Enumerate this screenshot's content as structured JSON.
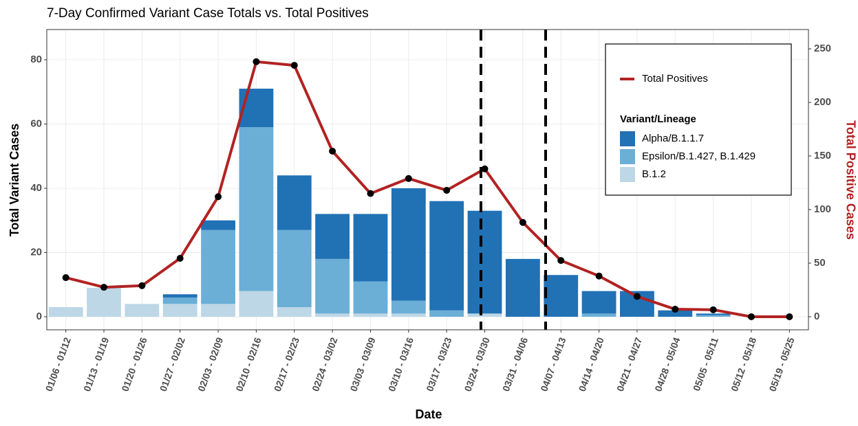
{
  "chart_data": {
    "type": "bar",
    "title": "7-Day Confirmed Variant Case Totals vs. Total Positives",
    "x_label": "Date",
    "y_label": "Total Variant Cases",
    "y2_label": "Total Positive Cases",
    "legend_title": "Variant/Lineage",
    "categories": [
      "01/06 - 01/12",
      "01/13 - 01/19",
      "01/20 - 01/26",
      "01/27 - 02/02",
      "02/03 - 02/09",
      "02/10 - 02/16",
      "02/17 - 02/23",
      "02/24 - 03/02",
      "03/03 - 03/09",
      "03/10 - 03/16",
      "03/17 - 03/23",
      "03/24 - 03/30",
      "03/31 - 04/06",
      "04/07 - 04/13",
      "04/14 - 04/20",
      "04/21 - 04/27",
      "04/28 - 05/04",
      "05/05 - 05/11",
      "05/12 - 05/18",
      "05/19 - 05/25"
    ],
    "series": [
      {
        "name": "Alpha/B.1.1.7",
        "color": "#2171b5",
        "values": [
          0,
          0,
          0,
          1,
          3,
          12,
          17,
          14,
          21,
          35,
          34,
          32,
          18,
          13,
          7,
          8,
          2,
          0.5,
          0,
          0
        ]
      },
      {
        "name": "Epsilon/B.1.427, B.1.429",
        "color": "#6baed6",
        "values": [
          0,
          0,
          0,
          2,
          23,
          51,
          24,
          17,
          10,
          4,
          2,
          0,
          0,
          0,
          1,
          0,
          0,
          0.5,
          0,
          0
        ]
      },
      {
        "name": "B.1.2",
        "color": "#bdd7e7",
        "values": [
          3,
          9,
          4,
          4,
          4,
          8,
          3,
          1,
          1,
          1,
          0,
          1,
          0,
          0,
          0,
          0,
          0,
          0,
          0,
          0
        ]
      },
      {
        "name": "Total Positives",
        "color": "#b22222",
        "type": "line",
        "axis": "y2",
        "values": [
          36.5,
          27.5,
          29,
          54.5,
          112,
          238,
          234.6,
          154.5,
          115,
          129,
          118,
          138,
          88,
          52.5,
          38,
          19,
          7,
          6.5,
          0,
          0
        ]
      }
    ],
    "ylim": [
      -4.06,
      89.4
    ],
    "yticks": [
      0,
      20,
      40,
      60,
      80
    ],
    "y2lim": [
      -12.2,
      268
    ],
    "y2ticks": [
      0,
      50,
      100,
      150,
      200,
      250
    ],
    "grid": true
  }
}
